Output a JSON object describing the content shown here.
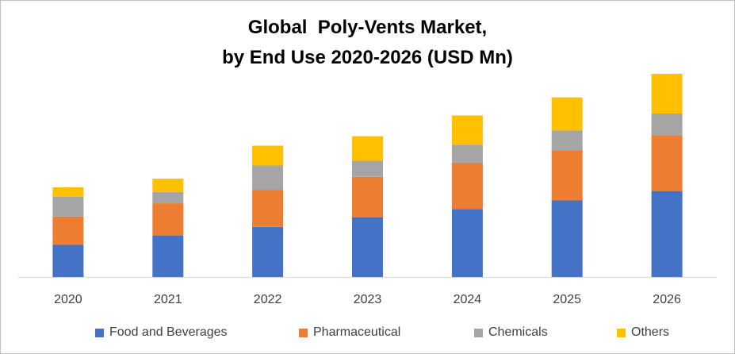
{
  "chart_data": {
    "type": "bar",
    "stacked": true,
    "title_lines": [
      "Global  Poly-Vents Market,",
      "by End Use 2020-2026 (USD Mn)"
    ],
    "categories": [
      "2020",
      "2021",
      "2022",
      "2023",
      "2024",
      "2025",
      "2026"
    ],
    "series": [
      {
        "name": "Food and Beverages",
        "color": "#4472C4",
        "values": [
          34,
          44,
          53,
          63,
          72,
          81,
          91
        ]
      },
      {
        "name": "Pharmaceutical",
        "color": "#ED7D31",
        "values": [
          30,
          34,
          39,
          43,
          49,
          53,
          59
        ]
      },
      {
        "name": "Chemicals",
        "color": "#A5A5A5",
        "values": [
          21,
          12,
          26,
          17,
          19,
          21,
          23
        ]
      },
      {
        "name": "Others",
        "color": "#FFC000",
        "values": [
          10,
          14,
          21,
          26,
          31,
          35,
          42
        ]
      }
    ],
    "ylim": [
      0,
      220
    ],
    "grid": false,
    "legend_position": "bottom"
  }
}
